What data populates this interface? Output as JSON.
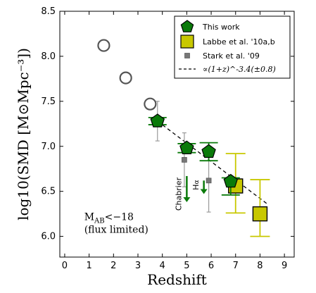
{
  "chart_data": {
    "type": "scatter",
    "xlabel": "Redshift",
    "ylabel": "log10(SMD [M⊙Mpc⁻³])",
    "xlim": [
      -0.2,
      9.4
    ],
    "ylim": [
      5.77,
      8.5
    ],
    "xticks": [
      "0",
      "1",
      "2",
      "3",
      "4",
      "5",
      "6",
      "7",
      "8",
      "9"
    ],
    "yticks": [
      "6.0",
      "6.5",
      "7.0",
      "7.5",
      "8.0",
      "8.5"
    ],
    "grid": false,
    "legend_position": "top-right",
    "legend": [
      {
        "label": "This work",
        "marker": "pentagon"
      },
      {
        "label": "Labbe et al. '10a,b",
        "marker": "square"
      },
      {
        "label": "Stark et al. '09",
        "marker": "small-square"
      },
      {
        "label": "∝(1+z)^-3.4(±0.8)",
        "marker": "dashed-line"
      }
    ],
    "series": [
      {
        "name": "This work",
        "color": "#0a7a0a",
        "points": [
          {
            "x": 3.8,
            "y": 7.28,
            "yerr_lo": 0.04,
            "yerr_hi": 0.04
          },
          {
            "x": 5.0,
            "y": 6.98,
            "yerr_lo": 0.05,
            "yerr_hi": 0.05
          },
          {
            "x": 5.9,
            "y": 6.94,
            "yerr_lo": 0.1,
            "yerr_hi": 0.1
          },
          {
            "x": 6.8,
            "y": 6.61,
            "yerr_lo": 0.15,
            "yerr_hi": 0.04
          }
        ]
      },
      {
        "name": "Labbe et al. '10a,b",
        "color": "#c8c800",
        "points": [
          {
            "x": 7.0,
            "y": 6.56,
            "yerr_lo": 0.3,
            "yerr_hi": 0.36
          },
          {
            "x": 8.0,
            "y": 6.25,
            "yerr_lo": 0.25,
            "yerr_hi": 0.38
          }
        ]
      },
      {
        "name": "Stark et al. '09",
        "color": "#808080",
        "points": [
          {
            "x": 3.8,
            "y": 7.28,
            "yerr_lo": 0.22,
            "yerr_hi": 0.22
          },
          {
            "x": 4.9,
            "y": 6.85,
            "yerr_lo": 0.3,
            "yerr_hi": 0.3
          },
          {
            "x": 5.9,
            "y": 6.62,
            "yerr_lo": 0.35,
            "yerr_hi": 0.38
          }
        ]
      },
      {
        "name": "open-circles",
        "color": "#555555",
        "points": [
          {
            "x": 1.6,
            "y": 8.12
          },
          {
            "x": 2.5,
            "y": 7.76
          },
          {
            "x": 3.5,
            "y": 7.47
          }
        ]
      }
    ],
    "fit_line": {
      "x": [
        3.8,
        8.3
      ],
      "y": [
        7.28,
        6.36
      ]
    },
    "annotations": {
      "mab_main": "M",
      "mab_sub": "AB",
      "mab_rest": "<−18",
      "flux_limited": "(flux limited)",
      "chabrier": "Chabrier",
      "halpha_main": "H",
      "halpha_sub": "α"
    },
    "arrows": [
      {
        "x": 5.0,
        "y_from": 6.67,
        "y_to": 6.38
      },
      {
        "x": 5.7,
        "y_from": 6.62,
        "y_to": 6.47
      }
    ]
  }
}
